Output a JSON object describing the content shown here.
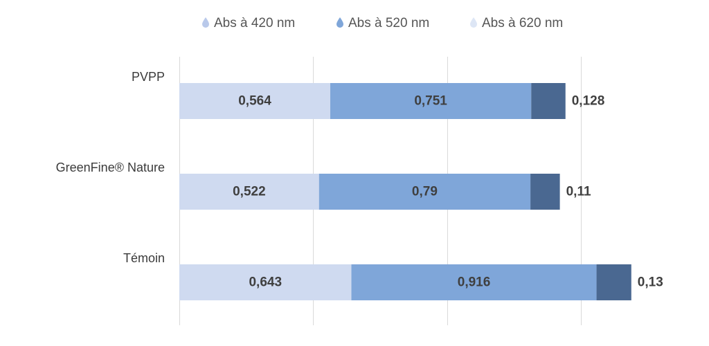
{
  "chart_data": {
    "type": "bar",
    "orientation": "horizontal",
    "stacked": true,
    "categories": [
      "PVPP",
      "GreenFine® Nature",
      "Témoin"
    ],
    "series": [
      {
        "name": "Abs à 420 nm",
        "values": [
          0.564,
          0.522,
          0.643
        ],
        "labels": [
          "0,564",
          "0,522",
          "0,643"
        ],
        "color": "#cfdaf0"
      },
      {
        "name": "Abs à 520 nm",
        "values": [
          0.751,
          0.79,
          0.916
        ],
        "labels": [
          "0,751",
          "0,79",
          "0,916"
        ],
        "color": "#7fa6d9"
      },
      {
        "name": "Abs à 620 nm",
        "values": [
          0.128,
          0.11,
          0.13
        ],
        "labels": [
          "0,128",
          "0,11",
          "0,13"
        ],
        "color": "#4a6891"
      }
    ],
    "legend_marker_colors": [
      "#b9c9ea",
      "#7fa6d9",
      "#dde6f5"
    ],
    "xlim": [
      0,
      2
    ],
    "grid": true,
    "legend_position": "top"
  }
}
